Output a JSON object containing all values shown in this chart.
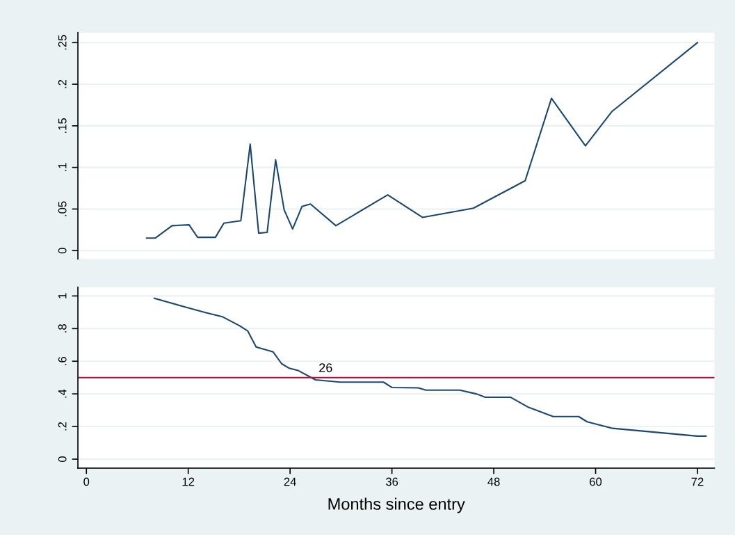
{
  "chart_data": [
    {
      "type": "line",
      "tick_labels": "y",
      "grid": "y",
      "xlim": [
        -1,
        74
      ],
      "ylim": [
        -0.01,
        0.262
      ],
      "yticks": [
        {
          "value": 0,
          "label": "0"
        },
        {
          "value": 0.05,
          "label": ".05"
        },
        {
          "value": 0.1,
          "label": ".1"
        },
        {
          "value": 0.15,
          "label": ".15"
        },
        {
          "value": 0.2,
          "label": ".2"
        },
        {
          "value": 0.25,
          "label": ".25"
        }
      ],
      "series": [
        {
          "color": "#1a476f",
          "x": [
            7.1,
            8.1,
            10.1,
            12.1,
            13.1,
            15.2,
            16.2,
            18.2,
            19.3,
            20.3,
            21.3,
            22.3,
            23.3,
            24.3,
            25.4,
            26.4,
            29.4,
            35.5,
            39.6,
            45.6,
            51.7,
            54.8,
            58.8,
            61.9,
            72.0
          ],
          "values": [
            0.015,
            0.015,
            0.03,
            0.031,
            0.016,
            0.016,
            0.033,
            0.036,
            0.128,
            0.021,
            0.022,
            0.109,
            0.049,
            0.026,
            0.053,
            0.056,
            0.03,
            0.067,
            0.04,
            0.051,
            0.084,
            0.183,
            0.126,
            0.167,
            0.25
          ]
        }
      ]
    },
    {
      "type": "line",
      "grid": "y",
      "xlabel": "Months since entry",
      "xlim": [
        -1,
        74
      ],
      "xticks": [
        0,
        12,
        24,
        36,
        48,
        60,
        72
      ],
      "ylim": [
        -0.055,
        1.053
      ],
      "yticks": [
        {
          "value": 0,
          "label": "0"
        },
        {
          "value": 0.2,
          "label": ".2"
        },
        {
          "value": 0.4,
          "label": ".4"
        },
        {
          "value": 0.6,
          "label": ".6"
        },
        {
          "value": 0.8,
          "label": ".8"
        },
        {
          "value": 1,
          "label": "1"
        }
      ],
      "ref_lines": [
        {
          "axis": "y",
          "value": 0.5,
          "color": "#c10534"
        }
      ],
      "annotations": [
        {
          "text": "26",
          "x": 26,
          "y": 0.5
        }
      ],
      "series": [
        {
          "color": "#1a476f",
          "x": [
            8.0,
            11.7,
            14.1,
            16.0,
            18.0,
            19.0,
            20.0,
            22.0,
            23.0,
            23.9,
            25.0,
            27.0,
            29.9,
            35.0,
            36.0,
            39.1,
            40.0,
            44.0,
            46.0,
            47.0,
            50.0,
            52.0,
            55.0,
            58.0,
            59.0,
            62.0,
            72.0,
            73.0
          ],
          "values": [
            0.986,
            0.931,
            0.897,
            0.873,
            0.819,
            0.786,
            0.687,
            0.657,
            0.585,
            0.557,
            0.542,
            0.486,
            0.472,
            0.472,
            0.439,
            0.437,
            0.423,
            0.423,
            0.399,
            0.379,
            0.379,
            0.32,
            0.261,
            0.261,
            0.229,
            0.189,
            0.141,
            0.141
          ]
        }
      ]
    }
  ]
}
